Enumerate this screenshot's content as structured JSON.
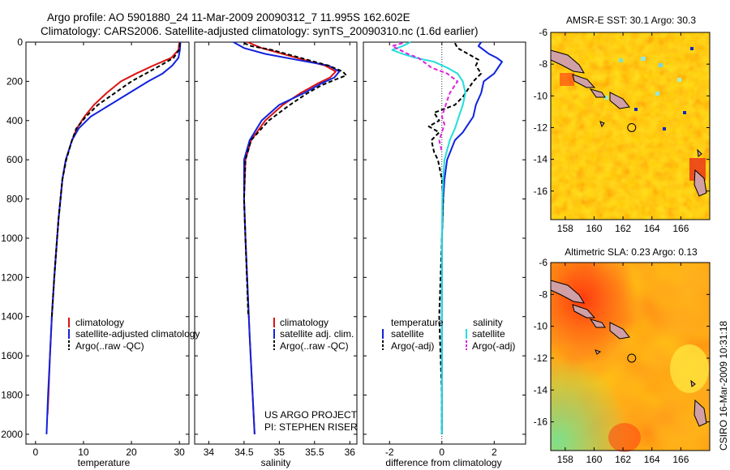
{
  "header": {
    "line1": "Argo profile: AO 5901880_24 11-Mar-2009 20090312_7 11.995S 162.602E",
    "line2": "Climatology: CARS2006. Satellite-adjusted climatology: synTS_20090310.nc (1.6d earlier)"
  },
  "side_stamp": "CSIRO 16-Mar-2009 10:31:18",
  "colors": {
    "climatology": "#dd1111",
    "satellite": "#1122dd",
    "argo": "#000000",
    "sal_satellite": "#22dddd",
    "sal_argo": "#dd22dd"
  },
  "chart_data": [
    {
      "id": "temperature",
      "type": "line",
      "xlabel": "temperature",
      "xlim": [
        -2,
        32
      ],
      "xticks": [
        0,
        10,
        20,
        30
      ],
      "ylim": [
        2050,
        0
      ],
      "yticks": [
        0,
        200,
        400,
        600,
        800,
        1000,
        1200,
        1400,
        1600,
        1800,
        2000
      ],
      "legend": [
        "climatology",
        "satellite-adjusted climatology",
        "Argo(..raw -QC)"
      ],
      "series": [
        {
          "name": "climatology",
          "color": "#dd1111",
          "style": "solid",
          "depth": [
            0,
            40,
            80,
            120,
            160,
            200,
            260,
            320,
            380,
            440,
            500,
            600,
            700,
            800,
            900,
            1000,
            1200,
            1400,
            1600,
            1800,
            1900
          ],
          "values": [
            30.0,
            29.8,
            28.3,
            24.5,
            21.0,
            17.8,
            14.8,
            12.2,
            10.2,
            8.6,
            7.6,
            6.3,
            5.6,
            5.2,
            4.8,
            4.5,
            3.9,
            3.4,
            3.0,
            2.7,
            2.5
          ]
        },
        {
          "name": "satellite-adjusted",
          "color": "#1122dd",
          "style": "solid",
          "depth": [
            0,
            40,
            80,
            120,
            160,
            200,
            260,
            320,
            380,
            440,
            500,
            600,
            700,
            800,
            900,
            1000,
            1200,
            1400,
            1600,
            1800,
            2000
          ],
          "values": [
            30.2,
            30.1,
            29.8,
            28.5,
            26.5,
            23.5,
            19.5,
            15.5,
            11.5,
            9.0,
            7.6,
            6.3,
            5.6,
            5.2,
            4.8,
            4.5,
            3.9,
            3.4,
            3.0,
            2.6,
            2.3
          ]
        },
        {
          "name": "argo",
          "color": "#000000",
          "style": "dash",
          "depth": [
            5,
            40,
            80,
            120,
            160,
            200,
            260,
            320,
            380,
            440,
            500,
            600,
            700,
            800,
            900,
            1000,
            1200,
            1400
          ],
          "values": [
            30.1,
            29.9,
            28.8,
            26.0,
            23.0,
            20.0,
            16.5,
            13.0,
            10.5,
            8.5,
            7.6,
            6.4,
            5.6,
            5.2,
            4.8,
            4.5,
            3.9,
            3.4
          ]
        }
      ]
    },
    {
      "id": "salinity",
      "type": "line",
      "xlabel": "salinity",
      "xlim": [
        33.8,
        36.1
      ],
      "xticks": [
        34,
        34.5,
        35,
        35.5,
        36
      ],
      "ylim": [
        2050,
        0
      ],
      "legend": [
        "climatology",
        "satellite adj. clim.",
        "Argo(..raw -QC)"
      ],
      "annotations": [
        "US ARGO PROJECT",
        "PI: STEPHEN RISER"
      ],
      "series": [
        {
          "name": "climatology",
          "color": "#dd1111",
          "style": "solid",
          "depth": [
            0,
            30,
            60,
            90,
            120,
            150,
            180,
            210,
            260,
            320,
            400,
            500,
            600,
            800,
            1000,
            1500,
            2000
          ],
          "values": [
            34.55,
            34.75,
            35.05,
            35.35,
            35.65,
            35.8,
            35.72,
            35.55,
            35.3,
            35.05,
            34.8,
            34.6,
            34.52,
            34.5,
            34.52,
            34.58,
            34.65
          ]
        },
        {
          "name": "satellite-adjusted",
          "color": "#1122dd",
          "style": "solid",
          "depth": [
            0,
            30,
            60,
            90,
            120,
            150,
            180,
            210,
            260,
            320,
            400,
            500,
            600,
            800,
            1000,
            1500,
            2000
          ],
          "values": [
            34.35,
            34.5,
            34.8,
            35.25,
            35.7,
            35.85,
            35.78,
            35.6,
            35.35,
            35.0,
            34.75,
            34.58,
            34.5,
            34.5,
            34.52,
            34.58,
            34.65
          ]
        },
        {
          "name": "argo",
          "color": "#000000",
          "style": "dash",
          "depth": [
            5,
            20,
            40,
            60,
            90,
            120,
            150,
            170,
            190,
            220,
            260,
            320,
            400,
            500,
            600,
            800,
            1000,
            1400
          ],
          "values": [
            34.5,
            34.6,
            34.9,
            35.1,
            35.4,
            35.7,
            35.9,
            35.95,
            35.8,
            35.6,
            35.4,
            35.15,
            34.85,
            34.6,
            34.52,
            34.5,
            34.52,
            34.56
          ]
        }
      ]
    },
    {
      "id": "difference",
      "type": "line",
      "xlabel": "difference from climatology",
      "xlim": [
        -3.0,
        3.2
      ],
      "xticks": [
        -2,
        0,
        2
      ],
      "ylim": [
        2050,
        0
      ],
      "legend_headers": [
        "temperature",
        "salinity"
      ],
      "legend": [
        "satellite",
        "Argo(-adj)",
        "satellite",
        "Argo(-adj)"
      ],
      "series": [
        {
          "name": "temperature satellite",
          "color": "#1122dd",
          "style": "solid",
          "depth": [
            0,
            20,
            40,
            60,
            80,
            100,
            120,
            160,
            200,
            260,
            320,
            380,
            420,
            460,
            500,
            600,
            700,
            800,
            1000,
            1400,
            2000
          ],
          "values": [
            1.5,
            1.4,
            1.6,
            1.8,
            2.1,
            2.3,
            2.2,
            2.0,
            1.6,
            1.5,
            1.3,
            1.2,
            1.0,
            0.8,
            0.5,
            0.2,
            0.1,
            0.05,
            0.0,
            0.0,
            0.0
          ]
        },
        {
          "name": "temperature argo",
          "color": "#000000",
          "style": "dash",
          "depth": [
            5,
            30,
            60,
            90,
            120,
            160,
            200,
            240,
            280,
            320,
            360,
            400,
            430,
            460,
            500,
            560,
            600,
            700,
            800,
            1000,
            1400,
            1800,
            2000
          ],
          "values": [
            0.5,
            0.6,
            1.0,
            1.4,
            1.3,
            1.5,
            1.2,
            1.0,
            0.8,
            0.5,
            -0.3,
            -0.1,
            -0.5,
            -0.1,
            -0.4,
            -0.3,
            -0.15,
            0.0,
            0.05,
            0.0,
            -0.1,
            0.0,
            0.0
          ]
        },
        {
          "name": "salinity satellite",
          "color": "#22dddd",
          "style": "solid",
          "depth": [
            0,
            20,
            40,
            60,
            80,
            100,
            130,
            160,
            200,
            260,
            320,
            380,
            440,
            500,
            600,
            700,
            800,
            1000,
            1400,
            2000
          ],
          "values": [
            -1.2,
            -1.5,
            -1.9,
            -1.5,
            -1.0,
            -0.3,
            0.2,
            0.6,
            0.8,
            0.9,
            0.8,
            0.65,
            0.5,
            0.3,
            0.1,
            0.05,
            0.02,
            0.0,
            0.0,
            0.0
          ]
        },
        {
          "name": "salinity argo",
          "color": "#dd22dd",
          "style": "dash",
          "depth": [
            5,
            20,
            40,
            60,
            80,
            100,
            130,
            160,
            200,
            260,
            300,
            340,
            380,
            420,
            460,
            500,
            560
          ],
          "values": [
            -1.5,
            -1.9,
            -1.6,
            -1.3,
            -0.9,
            -0.7,
            -0.4,
            0.2,
            0.6,
            0.3,
            0.2,
            0.1,
            0.0,
            0.1,
            0.0,
            -0.1,
            0.0
          ]
        }
      ]
    },
    {
      "id": "sst-map",
      "type": "heatmap",
      "title": "AMSR-E SST: 30.1 Argo: 30.3",
      "xlim": [
        157,
        168
      ],
      "ylim": [
        -17.8,
        -6
      ],
      "xticks": [
        158,
        160,
        162,
        164,
        166
      ],
      "yticks": [
        -6,
        -8,
        -10,
        -12,
        -14,
        -16
      ],
      "marker": {
        "lon": 162.6,
        "lat": -12.0
      }
    },
    {
      "id": "sla-map",
      "type": "heatmap",
      "title": "Altimetric SLA: 0.23 Argo: 0.13",
      "xlim": [
        157,
        168
      ],
      "ylim": [
        -17.8,
        -6
      ],
      "xticks": [
        158,
        160,
        162,
        164,
        166
      ],
      "yticks": [
        -6,
        -8,
        -10,
        -12,
        -14,
        -16
      ],
      "marker": {
        "lon": 162.6,
        "lat": -12.0
      }
    }
  ]
}
